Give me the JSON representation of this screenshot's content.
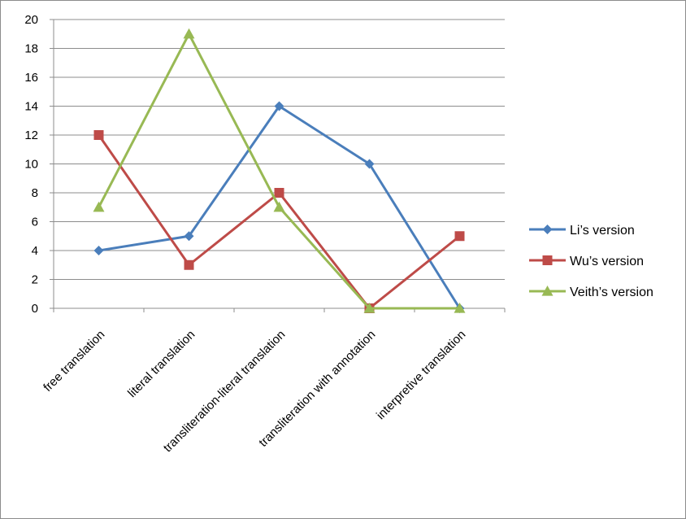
{
  "chart_data": {
    "type": "line",
    "title": "",
    "xlabel": "",
    "ylabel": "",
    "categories": [
      "free translation",
      "literal translation",
      "transliteration-literal translation",
      "transliteration with annotation",
      "interpretive translation"
    ],
    "y_ticks": [
      "0",
      "2",
      "4",
      "6",
      "8",
      "10",
      "12",
      "14",
      "16",
      "18",
      "20"
    ],
    "ylim": [
      0,
      20
    ],
    "grid": "horizontal",
    "legend_position": "right",
    "series": [
      {
        "name": "Li’s version",
        "color": "#4a7ebb",
        "marker": "diamond",
        "values": [
          4,
          5,
          14,
          10,
          0
        ]
      },
      {
        "name": "Wu’s version",
        "color": "#be4b48",
        "marker": "square",
        "values": [
          12,
          3,
          8,
          0,
          5
        ]
      },
      {
        "name": "Veith’s version",
        "color": "#98b954",
        "marker": "triangle",
        "values": [
          7,
          19,
          7,
          0,
          0
        ]
      }
    ]
  }
}
